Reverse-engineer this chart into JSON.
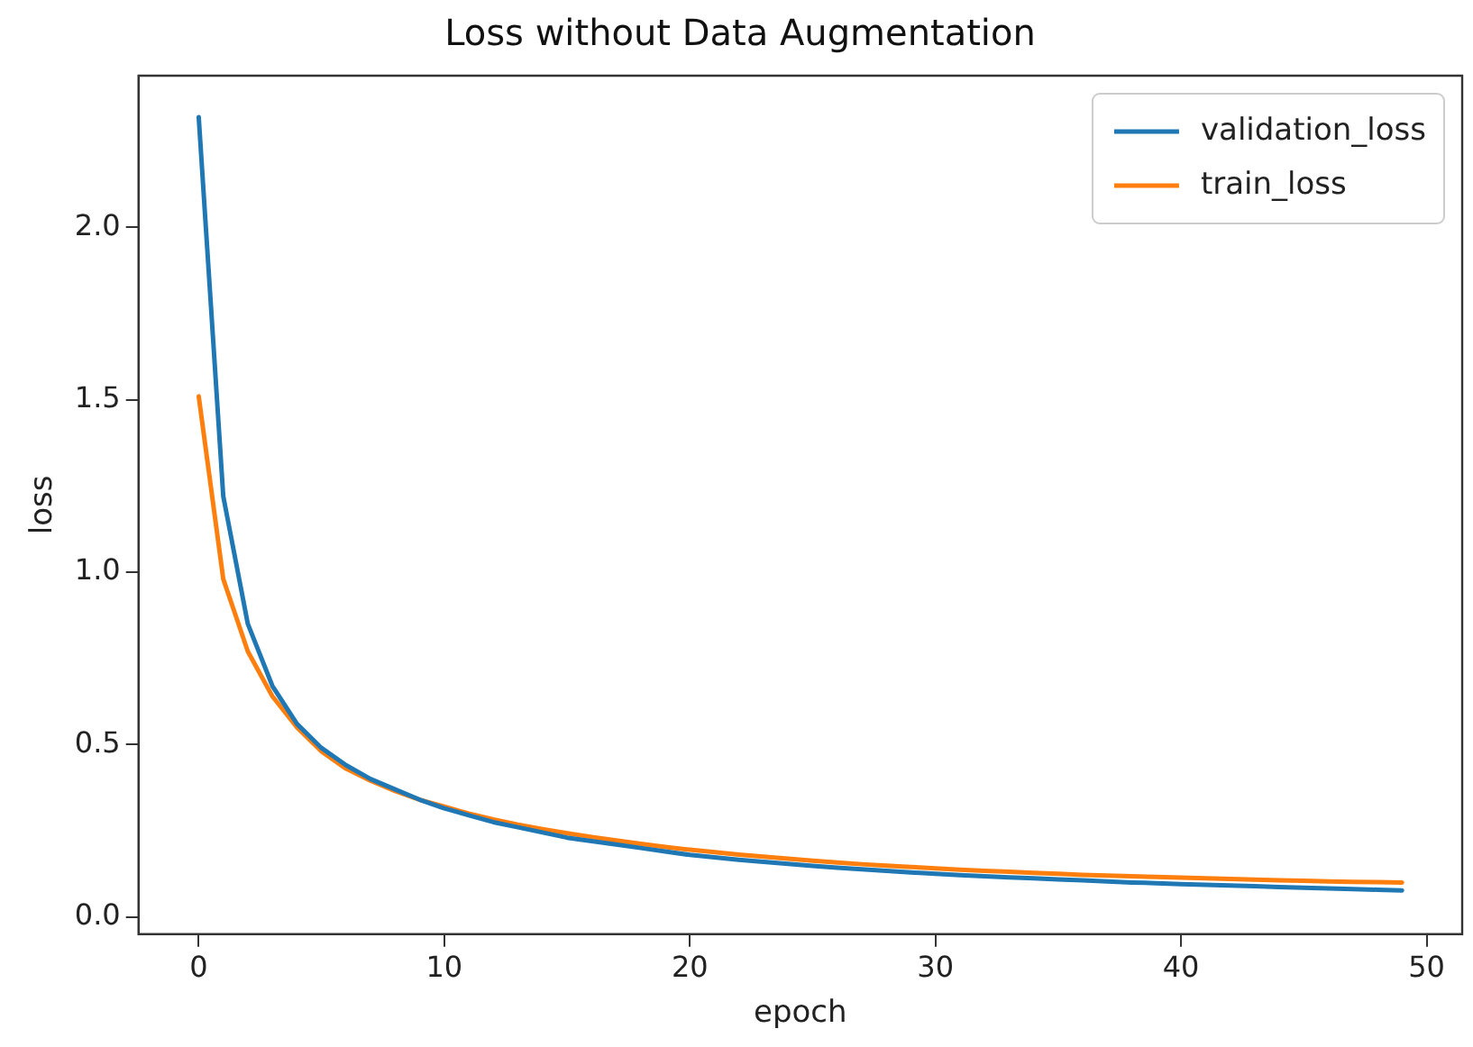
{
  "chart_data": {
    "type": "line",
    "title": "Loss without Data Augmentation",
    "xlabel": "epoch",
    "ylabel": "loss",
    "x": [
      0,
      1,
      2,
      3,
      4,
      5,
      6,
      7,
      8,
      9,
      10,
      11,
      12,
      13,
      14,
      15,
      16,
      17,
      18,
      19,
      20,
      21,
      22,
      23,
      24,
      25,
      26,
      27,
      28,
      29,
      30,
      31,
      32,
      33,
      34,
      35,
      36,
      37,
      38,
      39,
      40,
      41,
      42,
      43,
      44,
      45,
      46,
      47,
      48,
      49
    ],
    "series": [
      {
        "name": "validation_loss",
        "color": "#1f77b4",
        "values": [
          2.32,
          1.22,
          0.85,
          0.67,
          0.56,
          0.49,
          0.44,
          0.4,
          0.37,
          0.34,
          0.315,
          0.295,
          0.275,
          0.26,
          0.245,
          0.23,
          0.22,
          0.21,
          0.2,
          0.19,
          0.18,
          0.173,
          0.166,
          0.16,
          0.154,
          0.148,
          0.143,
          0.138,
          0.134,
          0.129,
          0.125,
          0.121,
          0.118,
          0.115,
          0.112,
          0.109,
          0.106,
          0.103,
          0.1,
          0.098,
          0.095,
          0.093,
          0.091,
          0.089,
          0.087,
          0.085,
          0.083,
          0.081,
          0.079,
          0.077
        ]
      },
      {
        "name": "train_loss",
        "color": "#ff7f0e",
        "values": [
          1.51,
          0.98,
          0.77,
          0.64,
          0.55,
          0.48,
          0.43,
          0.395,
          0.365,
          0.34,
          0.32,
          0.3,
          0.283,
          0.268,
          0.255,
          0.243,
          0.232,
          0.222,
          0.212,
          0.203,
          0.195,
          0.188,
          0.181,
          0.175,
          0.169,
          0.163,
          0.158,
          0.153,
          0.149,
          0.145,
          0.141,
          0.137,
          0.134,
          0.131,
          0.128,
          0.125,
          0.122,
          0.12,
          0.118,
          0.116,
          0.114,
          0.112,
          0.11,
          0.108,
          0.106,
          0.105,
          0.103,
          0.102,
          0.101,
          0.1
        ]
      }
    ],
    "xlim": [
      -2.45,
      51.45
    ],
    "xticks": [
      0,
      10,
      20,
      30,
      40,
      50
    ],
    "ylim": [
      -0.05,
      2.44
    ],
    "yticks": [
      {
        "value": 0,
        "label": "0.0"
      },
      {
        "value": 0.5,
        "label": "0.5"
      },
      {
        "value": 1,
        "label": "1.0"
      },
      {
        "value": 1.5,
        "label": "1.5"
      },
      {
        "value": 2,
        "label": "2.0"
      }
    ],
    "grid": false,
    "legend": "top right",
    "marker": "none",
    "line_style": "solid"
  }
}
